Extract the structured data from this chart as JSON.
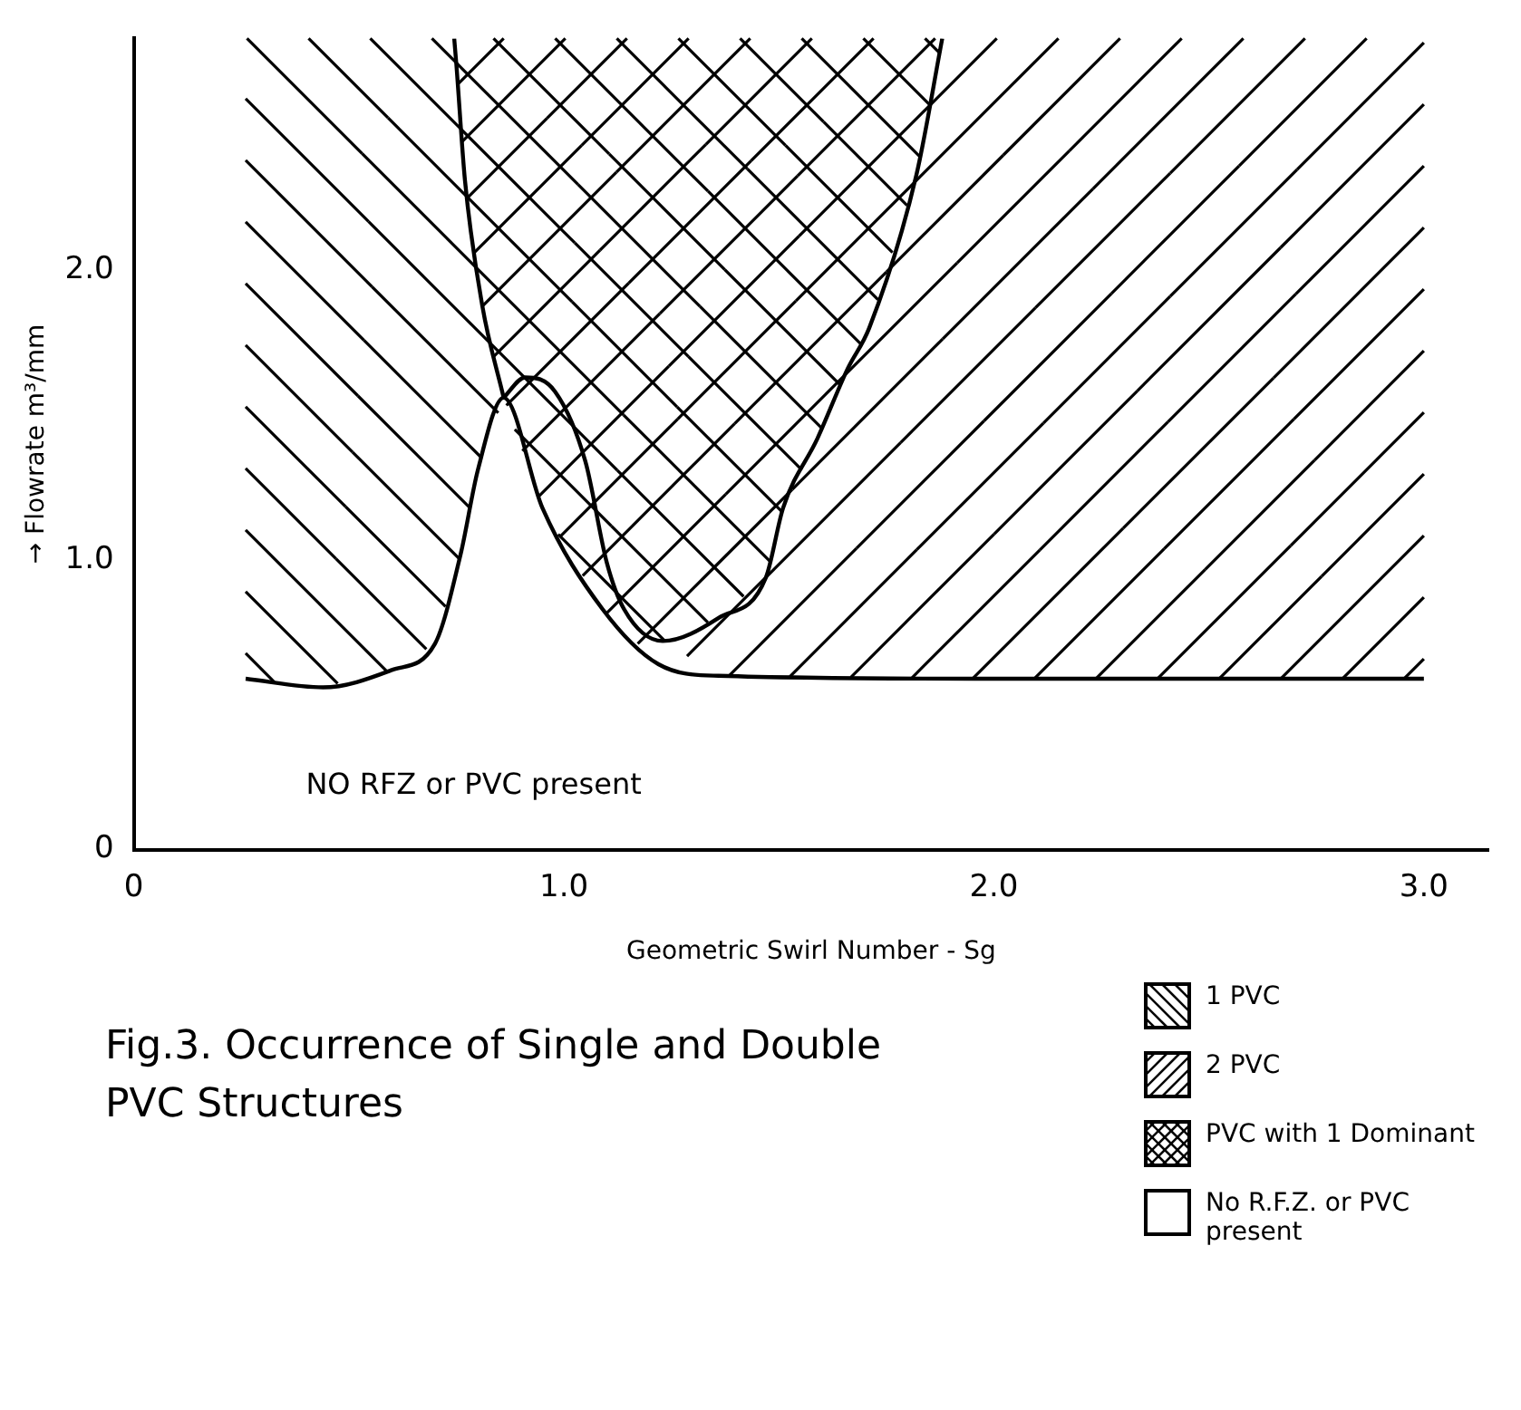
{
  "chart_data": {
    "type": "line",
    "title": "Fig.3. Occurrence of Single and Double PVC Structures",
    "xlabel": "Geometric Swirl Number - Sg",
    "ylabel": "→ Flowrate m³/mm",
    "series": [
      {
        "color": "#000000",
        "x": [
          0.26,
          0.44,
          0.6,
          0.7,
          0.76,
          0.8,
          0.86,
          0.95,
          1.09,
          1.22,
          1.36,
          2.0,
          3.0
        ],
        "values": [
          0.59,
          0.56,
          0.62,
          0.71,
          1.02,
          1.31,
          1.56,
          1.18,
          0.83,
          0.64,
          0.6,
          0.59,
          0.59
        ]
      },
      {
        "color": "#000000",
        "x": [
          0.86,
          0.81,
          0.77,
          0.75,
          0.745
        ],
        "values": [
          1.56,
          1.88,
          2.31,
          2.71,
          2.8
        ]
      },
      {
        "color": "#000000",
        "x": [
          0.86,
          0.91,
          0.98,
          1.05,
          1.1,
          1.14,
          1.23,
          1.36,
          1.47,
          1.51,
          1.59,
          1.66,
          1.71,
          1.82,
          1.88
        ],
        "values": [
          1.56,
          1.63,
          1.58,
          1.34,
          0.99,
          0.83,
          0.72,
          0.8,
          0.94,
          1.18,
          1.42,
          1.66,
          1.8,
          2.33,
          2.8
        ]
      }
    ],
    "xlim": [
      0,
      3.15
    ],
    "xticks": [
      0,
      {
        "value": 1,
        "label": "1.0"
      },
      {
        "value": 2,
        "label": "2.0"
      },
      {
        "value": 3,
        "label": "3.0"
      }
    ],
    "ylim": [
      0,
      2.8
    ],
    "yticks": [
      0,
      {
        "value": 1,
        "label": "1.0"
      },
      {
        "value": 2,
        "label": "2.0"
      }
    ],
    "grid": false,
    "legend": false,
    "marker": "none",
    "line_style": "solid",
    "annotations": [
      "NO RFZ or PVC present",
      "1 PVC",
      "2 PVC",
      "PVC with 1 Dominant",
      "No R.F.Z. or PVC present"
    ]
  }
}
